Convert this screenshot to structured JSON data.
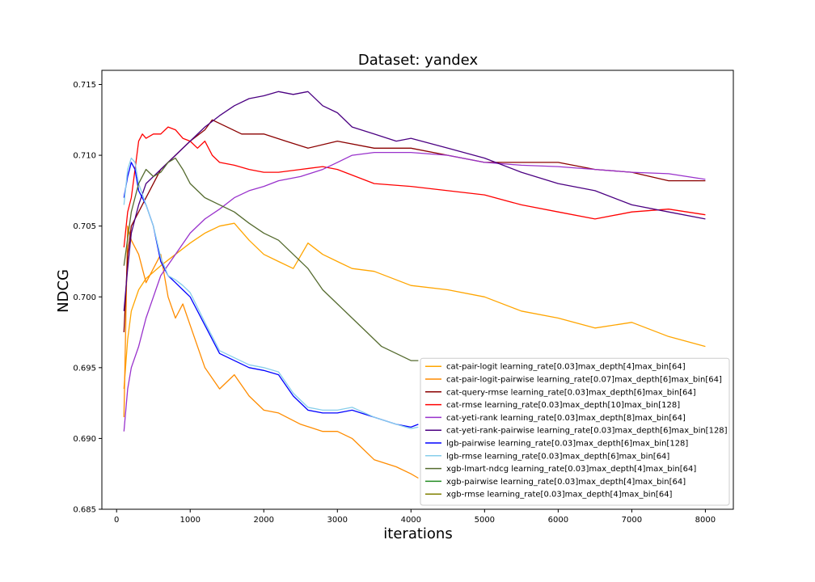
{
  "chart_data": {
    "type": "line",
    "title": "Dataset: yandex",
    "xlabel": "iterations",
    "ylabel": "NDCG",
    "xlim": [
      -200,
      8380
    ],
    "ylim": [
      0.685,
      0.716
    ],
    "xticks": [
      0,
      1000,
      2000,
      3000,
      4000,
      5000,
      6000,
      7000,
      8000
    ],
    "yticks": [
      0.685,
      0.69,
      0.695,
      0.7,
      0.705,
      0.71,
      0.715
    ],
    "xtick_labels": [
      "0",
      "1000",
      "2000",
      "3000",
      "4000",
      "5000",
      "6000",
      "7000",
      "8000"
    ],
    "ytick_labels": [
      "0.685",
      "0.690",
      "0.695",
      "0.700",
      "0.705",
      "0.710",
      "0.715"
    ],
    "grid": false,
    "legend_position": "lower-right",
    "series": [
      {
        "name": "cat-pair-logit learning_rate[0.03]max_depth[4]max_bin[64]",
        "color": "#ffa500",
        "x": [
          100,
          150,
          200,
          300,
          400,
          600,
          800,
          1000,
          1200,
          1400,
          1600,
          1800,
          2000,
          2200,
          2400,
          2600,
          2800,
          3000,
          3200,
          3500,
          4000,
          4500,
          5000,
          5500,
          6000,
          6500,
          7000,
          7500,
          8000
        ],
        "y": [
          0.6935,
          0.697,
          0.699,
          0.7005,
          0.7013,
          0.7022,
          0.703,
          0.7038,
          0.7045,
          0.705,
          0.7052,
          0.704,
          0.703,
          0.7025,
          0.702,
          0.7038,
          0.703,
          0.7025,
          0.702,
          0.7018,
          0.7008,
          0.7005,
          0.7,
          0.699,
          0.6985,
          0.6978,
          0.6982,
          0.6972,
          0.6965
        ]
      },
      {
        "name": "cat-pair-logit-pairwise learning_rate[0.07]max_depth[6]max_bin[64]",
        "color": "#ff8c00",
        "x": [
          100,
          150,
          200,
          300,
          400,
          500,
          600,
          700,
          800,
          900,
          1000,
          1200,
          1400,
          1600,
          1800,
          2000,
          2200,
          2500,
          2800,
          3000,
          3200,
          3500,
          3800,
          4000,
          4100
        ],
        "y": [
          0.6915,
          0.705,
          0.704,
          0.703,
          0.701,
          0.702,
          0.703,
          0.7,
          0.6985,
          0.6995,
          0.698,
          0.695,
          0.6935,
          0.6945,
          0.693,
          0.692,
          0.6918,
          0.691,
          0.6905,
          0.6905,
          0.69,
          0.6885,
          0.688,
          0.6875,
          0.6872
        ]
      },
      {
        "name": "cat-query-rmse learning_rate[0.03]max_depth[6]max_bin[64]",
        "color": "#8b0000",
        "x": [
          100,
          150,
          200,
          300,
          400,
          500,
          600,
          700,
          800,
          900,
          1000,
          1200,
          1300,
          1500,
          1700,
          2000,
          2300,
          2600,
          3000,
          3500,
          4000,
          4500,
          5000,
          5500,
          6000,
          6500,
          7000,
          7500,
          8000
        ],
        "y": [
          0.6975,
          0.703,
          0.705,
          0.706,
          0.707,
          0.708,
          0.709,
          0.7095,
          0.71,
          0.7105,
          0.711,
          0.7118,
          0.7125,
          0.712,
          0.7115,
          0.7115,
          0.711,
          0.7105,
          0.711,
          0.7105,
          0.7105,
          0.71,
          0.7095,
          0.7095,
          0.7095,
          0.709,
          0.7088,
          0.7082,
          0.7082
        ]
      },
      {
        "name": "cat-rmse learning_rate[0.03]max_depth[10]max_bin[128]",
        "color": "#ff0000",
        "x": [
          100,
          150,
          200,
          250,
          300,
          350,
          400,
          500,
          600,
          700,
          800,
          900,
          1000,
          1100,
          1200,
          1300,
          1400,
          1600,
          1800,
          2000,
          2200,
          2500,
          2800,
          3000,
          3500,
          4000,
          4500,
          5000,
          5500,
          6000,
          6500,
          7000,
          7500,
          8000
        ],
        "y": [
          0.7035,
          0.706,
          0.707,
          0.709,
          0.711,
          0.7115,
          0.7112,
          0.7115,
          0.7115,
          0.712,
          0.7118,
          0.7112,
          0.711,
          0.7105,
          0.711,
          0.71,
          0.7095,
          0.7093,
          0.709,
          0.7088,
          0.7088,
          0.709,
          0.7092,
          0.709,
          0.708,
          0.7078,
          0.7075,
          0.7072,
          0.7065,
          0.706,
          0.7055,
          0.706,
          0.7062,
          0.7058
        ]
      },
      {
        "name": "cat-yeti-rank learning_rate[0.03]max_depth[8]max_bin[64]",
        "color": "#9932cc",
        "x": [
          100,
          150,
          200,
          300,
          400,
          500,
          600,
          800,
          1000,
          1200,
          1400,
          1600,
          1800,
          2000,
          2200,
          2500,
          2800,
          3000,
          3200,
          3500,
          4000,
          4500,
          5000,
          5500,
          6000,
          6500,
          7000,
          7500,
          8000
        ],
        "y": [
          0.6905,
          0.6935,
          0.695,
          0.6965,
          0.6985,
          0.7,
          0.7015,
          0.703,
          0.7045,
          0.7055,
          0.7062,
          0.707,
          0.7075,
          0.7078,
          0.7082,
          0.7085,
          0.709,
          0.7095,
          0.71,
          0.7102,
          0.7102,
          0.71,
          0.7095,
          0.7093,
          0.7092,
          0.709,
          0.7088,
          0.7087,
          0.7083
        ]
      },
      {
        "name": "cat-yeti-rank-pairwise learning_rate[0.03]max_depth[6]max_bin[128]",
        "color": "#4b0082",
        "x": [
          100,
          150,
          200,
          300,
          400,
          500,
          600,
          800,
          1000,
          1200,
          1400,
          1600,
          1800,
          2000,
          2200,
          2400,
          2600,
          2800,
          3000,
          3200,
          3500,
          3800,
          4000,
          4500,
          5000,
          5500,
          6000,
          6500,
          7000,
          7500,
          8000
        ],
        "y": [
          0.699,
          0.702,
          0.7045,
          0.7065,
          0.708,
          0.7085,
          0.709,
          0.71,
          0.711,
          0.712,
          0.7128,
          0.7135,
          0.714,
          0.7142,
          0.7145,
          0.7143,
          0.7145,
          0.7135,
          0.713,
          0.712,
          0.7115,
          0.711,
          0.7112,
          0.7105,
          0.7098,
          0.7088,
          0.708,
          0.7075,
          0.7065,
          0.706,
          0.7055
        ]
      },
      {
        "name": "lgb-pairwise learning_rate[0.03]max_depth[6]max_bin[128]",
        "color": "#0000ff",
        "x": [
          100,
          150,
          200,
          250,
          300,
          400,
          500,
          600,
          700,
          800,
          900,
          1000,
          1200,
          1400,
          1600,
          1800,
          2000,
          2200,
          2400,
          2600,
          2800,
          3000,
          3200,
          3500,
          3800,
          4000,
          4100
        ],
        "y": [
          0.707,
          0.7085,
          0.7095,
          0.709,
          0.7075,
          0.7065,
          0.705,
          0.7025,
          0.7015,
          0.701,
          0.7005,
          0.7,
          0.698,
          0.696,
          0.6955,
          0.695,
          0.6948,
          0.6945,
          0.693,
          0.692,
          0.6918,
          0.6918,
          0.692,
          0.6915,
          0.691,
          0.6908,
          0.691
        ]
      },
      {
        "name": "lgb-rmse learning_rate[0.03]max_depth[6]max_bin[64]",
        "color": "#87ceeb",
        "x": [
          100,
          150,
          200,
          250,
          300,
          400,
          500,
          600,
          700,
          800,
          900,
          1000,
          1200,
          1400,
          1600,
          1800,
          2000,
          2200,
          2400,
          2600,
          2800,
          3000,
          3200,
          3500,
          3800,
          4000,
          4100
        ],
        "y": [
          0.7065,
          0.709,
          0.7098,
          0.7095,
          0.708,
          0.7065,
          0.705,
          0.7028,
          0.7015,
          0.7012,
          0.7008,
          0.7003,
          0.6982,
          0.6962,
          0.6957,
          0.6952,
          0.695,
          0.6947,
          0.6932,
          0.6922,
          0.692,
          0.692,
          0.6922,
          0.6915,
          0.691,
          0.6907,
          0.6908
        ]
      },
      {
        "name": "xgb-lmart-ndcg learning_rate[0.03]max_depth[4]max_bin[64]",
        "color": "#556b2f",
        "x": [
          100,
          200,
          300,
          400,
          500,
          600,
          700,
          800,
          900,
          1000,
          1200,
          1400,
          1600,
          1800,
          2000,
          2200,
          2400,
          2600,
          2800,
          3000,
          3200,
          3400,
          3600,
          3800,
          4000,
          4100
        ],
        "y": [
          0.7022,
          0.706,
          0.708,
          0.709,
          0.7085,
          0.7088,
          0.7095,
          0.7098,
          0.709,
          0.708,
          0.707,
          0.7065,
          0.706,
          0.7052,
          0.7045,
          0.704,
          0.703,
          0.702,
          0.7005,
          0.6995,
          0.6985,
          0.6975,
          0.6965,
          0.696,
          0.6955,
          0.6955
        ]
      },
      {
        "name": "xgb-pairwise learning_rate[0.03]max_depth[4]max_bin[64]",
        "color": "#228b22",
        "x": [],
        "y": []
      },
      {
        "name": "xgb-rmse learning_rate[0.03]max_depth[4]max_bin[64]",
        "color": "#808000",
        "x": [],
        "y": []
      }
    ]
  }
}
